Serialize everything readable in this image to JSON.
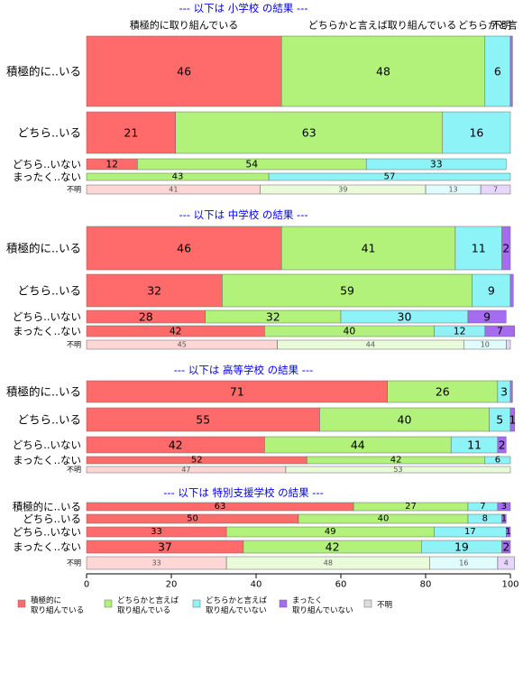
{
  "chart_data": {
    "type": "bar",
    "orientation": "horizontal",
    "stacked": true,
    "xlim": [
      0,
      100
    ],
    "x_ticks": [
      0,
      20,
      40,
      60,
      80,
      100
    ],
    "top_column_labels": [
      "積極的に取り組んでいる",
      "どちらかと言えば取り組んでいる",
      "どちらかと言",
      "不明"
    ],
    "series": [
      {
        "name": "積極的に\n取り組んでいる",
        "color": "#ff6b6b"
      },
      {
        "name": "どちらかと言えば\n取り組んでいる",
        "color": "#b2f27a"
      },
      {
        "name": "どちらかと言えば\n取り組んでいない",
        "color": "#8ef3f7"
      },
      {
        "name": "まったく\n取り組んでいない",
        "color": "#a66cf0"
      },
      {
        "name": "不明",
        "color": "#dddddd"
      }
    ],
    "groups": [
      {
        "title": "--- 以下は 小学校 の結果 ---",
        "rows": [
          {
            "label": "積極的に..いる",
            "values": [
              46,
              48,
              6,
              0.5
            ],
            "labels": [
              "46",
              "48",
              "6",
              ""
            ]
          },
          {
            "label": "どちら..いる",
            "values": [
              21,
              63,
              16,
              0
            ],
            "labels": [
              "21",
              "63",
              "16",
              ""
            ]
          },
          {
            "label": "どちら..いない",
            "values": [
              12,
              54,
              33,
              0
            ],
            "labels": [
              "12",
              "54",
              "33",
              ""
            ]
          },
          {
            "label": "まったく..ない",
            "values": [
              0,
              43,
              57,
              0
            ],
            "labels": [
              "",
              "43",
              "57",
              ""
            ]
          },
          {
            "label": "不明",
            "values": [
              41,
              39,
              13,
              7
            ],
            "labels": [
              "41",
              "39",
              "13",
              "7"
            ]
          }
        ]
      },
      {
        "title": "--- 以下は 中学校 の結果 ---",
        "rows": [
          {
            "label": "積極的に..いる",
            "values": [
              46,
              41,
              11,
              2
            ],
            "labels": [
              "46",
              "41",
              "11",
              "2"
            ]
          },
          {
            "label": "どちら..いる",
            "values": [
              32,
              59,
              9,
              0.7
            ],
            "labels": [
              "32",
              "59",
              "9",
              ""
            ]
          },
          {
            "label": "どちら..いない",
            "values": [
              28,
              32,
              30,
              9
            ],
            "labels": [
              "28",
              "32",
              "30",
              "9"
            ]
          },
          {
            "label": "まったく..ない",
            "values": [
              42,
              40,
              12,
              7
            ],
            "labels": [
              "42",
              "40",
              "12",
              "7"
            ]
          },
          {
            "label": "不明",
            "values": [
              45,
              44,
              10,
              1
            ],
            "labels": [
              "45",
              "44",
              "10",
              ""
            ]
          }
        ]
      },
      {
        "title": "--- 以下は 高等学校 の結果 ---",
        "rows": [
          {
            "label": "積極的に..いる",
            "values": [
              71,
              26,
              3,
              0.5
            ],
            "labels": [
              "71",
              "26",
              "3",
              ""
            ]
          },
          {
            "label": "どちら..いる",
            "values": [
              55,
              40,
              5,
              1
            ],
            "labels": [
              "55",
              "40",
              "5",
              "1"
            ]
          },
          {
            "label": "どちら..いない",
            "values": [
              42,
              44,
              11,
              2
            ],
            "labels": [
              "42",
              "44",
              "11",
              "2"
            ]
          },
          {
            "label": "まったく..ない",
            "values": [
              52,
              42,
              6,
              0
            ],
            "labels": [
              "52",
              "42",
              "6",
              ""
            ]
          },
          {
            "label": "不明",
            "values": [
              47,
              53,
              0,
              0
            ],
            "labels": [
              "47",
              "53",
              "",
              ""
            ]
          }
        ]
      },
      {
        "title": "--- 以下は 特別支援学校 の結果 ---",
        "rows": [
          {
            "label": "積極的に..いる",
            "values": [
              63,
              27,
              7,
              3
            ],
            "labels": [
              "63",
              "27",
              "7",
              "3"
            ]
          },
          {
            "label": "どちら..いる",
            "values": [
              50,
              40,
              8,
              1
            ],
            "labels": [
              "50",
              "40",
              "8",
              "1"
            ]
          },
          {
            "label": "どちら..いない",
            "values": [
              33,
              49,
              17,
              1
            ],
            "labels": [
              "33",
              "49",
              "17",
              "1"
            ]
          },
          {
            "label": "まったく..ない",
            "values": [
              37,
              42,
              19,
              2
            ],
            "labels": [
              "37",
              "42",
              "19",
              "2"
            ]
          },
          {
            "label": "不明",
            "values": [
              33,
              48,
              16,
              4
            ],
            "labels": [
              "33",
              "48",
              "16",
              "4"
            ]
          }
        ]
      }
    ]
  }
}
